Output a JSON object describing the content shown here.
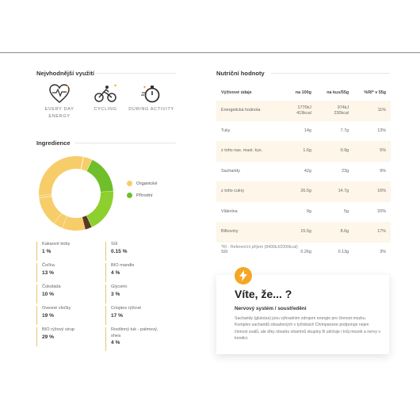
{
  "usage": {
    "title": "Nejvhodnější využití",
    "items": [
      {
        "label_line1": "EVERY DAY",
        "label_line2": "ENERGY",
        "icon": "heart-pulse-icon"
      },
      {
        "label_line1": "CYCLING",
        "label_line2": "",
        "icon": "cyclist-icon"
      },
      {
        "label_line1": "DURING ACTIVITY",
        "label_line2": "",
        "icon": "stopwatch-icon"
      }
    ]
  },
  "ingredients": {
    "title": "Ingredience",
    "legend": [
      {
        "label": "Organické",
        "color": "#f7cd6a"
      },
      {
        "label": "Přírodní",
        "color": "#6fbf2a"
      }
    ],
    "items": [
      {
        "name": "Kakaové boby",
        "pct": "1 %",
        "value": 1,
        "color": "#f7cd6a"
      },
      {
        "name": "Sůl",
        "pct": "0.15 %",
        "value": 0.15,
        "color": "#6fbf2a"
      },
      {
        "name": "Čočka",
        "pct": "13 %",
        "value": 13,
        "color": "#f7cd6a"
      },
      {
        "name": "BIO mandle",
        "pct": "4 %",
        "value": 4,
        "color": "#f7cd6a"
      },
      {
        "name": "Čokoláda",
        "pct": "10 %",
        "value": 10,
        "color": "#f7cd6a"
      },
      {
        "name": "Glycerin",
        "pct": "3 %",
        "value": 3,
        "color": "#5a3a1e"
      },
      {
        "name": "Ovesné vločky",
        "pct": "19 %",
        "value": 19,
        "color": "#8dcf2f"
      },
      {
        "name": "Crispies rýžové",
        "pct": "17 %",
        "value": 17,
        "color": "#6fbf2a"
      },
      {
        "name": "BIO rýžový sirup",
        "pct": "29 %",
        "value": 29,
        "color": "#f7cd6a"
      },
      {
        "name": "Rostlinný tuk - palmový, shea",
        "pct": "4 %",
        "value": 4,
        "color": "#f7cd6a"
      }
    ]
  },
  "nutrition": {
    "title": "Nutriční hodnoty",
    "headers": [
      "Výživové údaje",
      "na 100g",
      "na kus/55g",
      "%RI* v 55g"
    ],
    "rows": [
      {
        "name": "Energetická hodnota",
        "per100": "1770kJ",
        "per100b": "419kcal",
        "perPiece": "974kJ",
        "perPieceB": "230kcal",
        "ri": "11%"
      },
      {
        "name": "Tuky",
        "per100": "14g",
        "per100b": "",
        "perPiece": "7.7g",
        "perPieceB": "",
        "ri": "13%"
      },
      {
        "name": "z toho nas. mast. kys.",
        "per100": "1.6g",
        "per100b": "",
        "perPiece": "0.9g",
        "perPieceB": "",
        "ri": "5%"
      },
      {
        "name": "Sacharidy",
        "per100": "42g",
        "per100b": "",
        "perPiece": "23g",
        "perPieceB": "",
        "ri": "9%"
      },
      {
        "name": "z toho cukry",
        "per100": "26.5g",
        "per100b": "",
        "perPiece": "14.7g",
        "perPieceB": "",
        "ri": "16%"
      },
      {
        "name": "Vláknina",
        "per100": "9g",
        "per100b": "",
        "perPiece": "5g",
        "perPieceB": "",
        "ri": "20%"
      },
      {
        "name": "Bílkoviny",
        "per100": "15.5g",
        "per100b": "",
        "perPiece": "8.6g",
        "perPieceB": "",
        "ri": "17%"
      },
      {
        "name": "Sůl",
        "per100": "0.26g",
        "per100b": "",
        "perPiece": "0.13g",
        "perPieceB": "",
        "ri": "3%"
      }
    ],
    "footnote": "*RI - Referenční příjem (8400kJ/2000kcal)"
  },
  "didyouknow": {
    "title": "Víte, že... ?",
    "subtitle": "Nervový systém / soustředění",
    "text": "Sacharidy (glukóza) jsou výhradním zdrojem energie pro činnost mozku. Komplex sacharidů obsažených v tyčinkách Chimpanzee podporuje nejen činnost svalů, ale díky obsahu vitamínů skupiny B udržuje i tvůj mozek a nervy v kondici.",
    "accent": "#f5a623"
  }
}
